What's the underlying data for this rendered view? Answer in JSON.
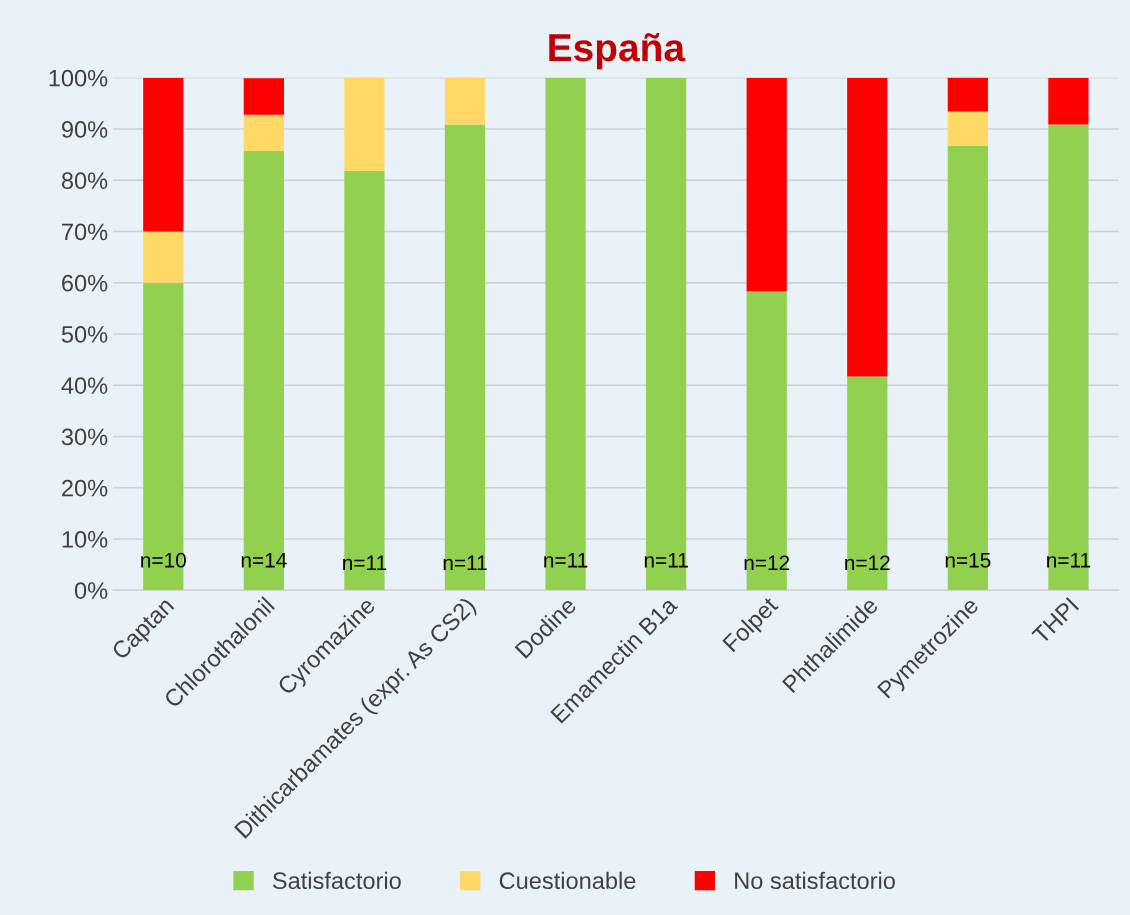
{
  "chart_data": {
    "type": "bar",
    "title": "España",
    "stacked": true,
    "categories": [
      "Captan",
      "Chlorothalonil",
      "Cyromazine",
      "Dithicarbamates (expr. As CS2)",
      "Dodine",
      "Emamectin B1a",
      "Folpet",
      "Phthalimide",
      "Pymetrozine",
      "THPI"
    ],
    "series": [
      {
        "name": "Satisfactorio",
        "color": "#92d050",
        "values": [
          60,
          85.7,
          81.8,
          90.9,
          100,
          100,
          58.3,
          41.7,
          86.7,
          90.9
        ]
      },
      {
        "name": "Cuestionable",
        "color": "#ffd966",
        "values": [
          10,
          7.1,
          18.2,
          9.1,
          0,
          0,
          0,
          0,
          6.7,
          0
        ]
      },
      {
        "name": "No satisfactorio",
        "color": "#ff0000",
        "values": [
          30,
          7.1,
          0,
          0,
          0,
          0,
          41.7,
          58.3,
          6.7,
          9.1
        ]
      }
    ],
    "ylim": [
      0,
      100
    ],
    "yticks": [
      {
        "value": 0,
        "label": "0%"
      },
      {
        "value": 10,
        "label": "10%"
      },
      {
        "value": 20,
        "label": "20%"
      },
      {
        "value": 30,
        "label": "30%"
      },
      {
        "value": 40,
        "label": "40%"
      },
      {
        "value": 50,
        "label": "50%"
      },
      {
        "value": 60,
        "label": "60%"
      },
      {
        "value": 70,
        "label": "70%"
      },
      {
        "value": 80,
        "label": "80%"
      },
      {
        "value": 90,
        "label": "90%"
      },
      {
        "value": 100,
        "label": "100%"
      }
    ],
    "grid": "y",
    "legend": "bottom",
    "annotations": [
      "n=10",
      "n=14",
      "n=11",
      "n=11",
      "n=11",
      "n=11",
      "n=12",
      "n=12",
      "n=15",
      "n=11"
    ]
  }
}
